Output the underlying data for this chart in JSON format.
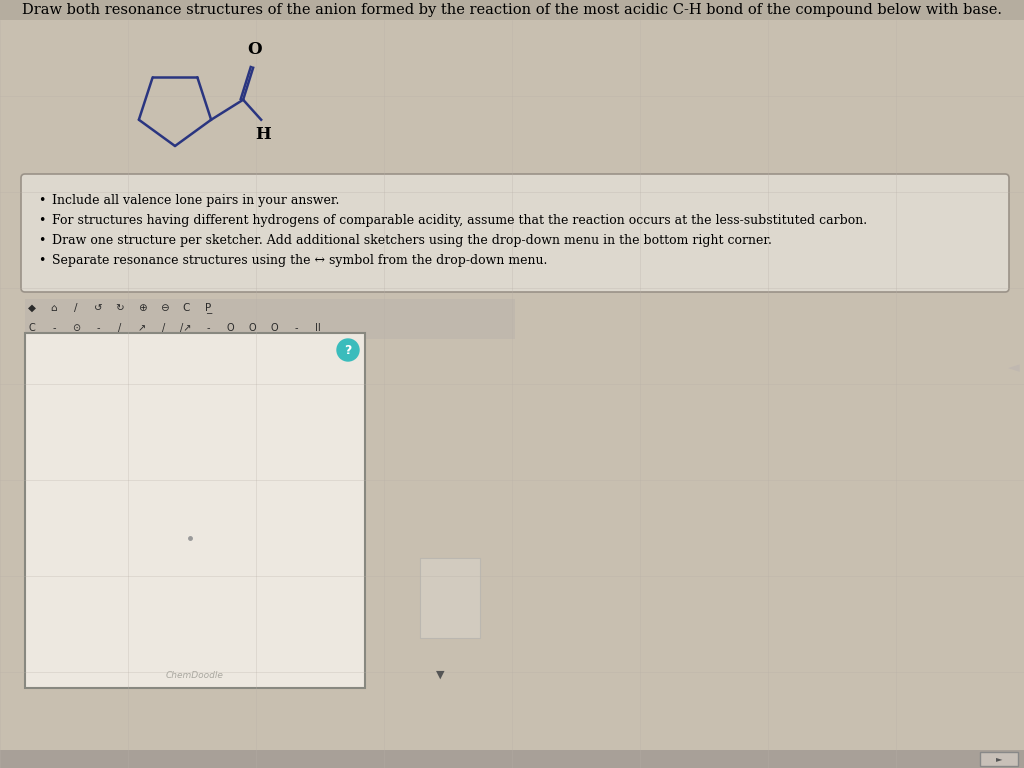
{
  "title": "Draw both resonance structures of the anion formed by the reaction of the most acidic C-H bond of the compound below with base.",
  "bg_color": "#c8bfb0",
  "title_fontsize": 10.5,
  "bullet_points": [
    "Include all valence lone pairs in your answer.",
    "For structures having different hydrogens of comparable acidity, assume that the reaction occurs at the less-substituted carbon.",
    "Draw one structure per sketcher. Add additional sketchers using the drop-down menu in the bottom right corner.",
    "Separate resonance structures using the ↔ symbol from the drop-down menu."
  ],
  "bullet_fontsize": 9.5,
  "box_bg": "#ddd8ce",
  "box_edge": "#b0a898",
  "sketcher_bg": "#e8e3db",
  "toolbar_bg": "#c0b8ad",
  "molecule_color": "#2a3580",
  "top_bar_color": "#b8b0a5",
  "bottom_bar_color": "#a8a098"
}
